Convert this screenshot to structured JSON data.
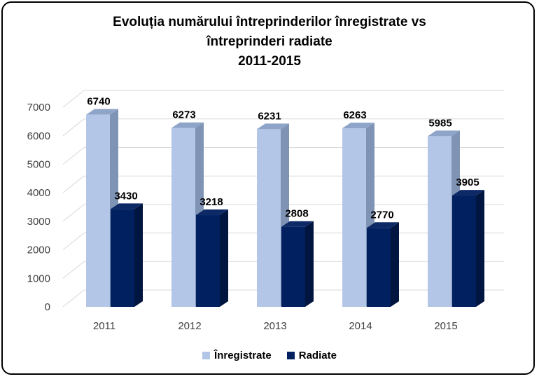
{
  "chart_data": {
    "type": "bar",
    "title": [
      "Evoluția numărului întreprinderilor înregistrate vs",
      "întreprinderi radiate",
      "2011-2015"
    ],
    "categories": [
      "2011",
      "2012",
      "2013",
      "2014",
      "2015"
    ],
    "series": [
      {
        "name": "Înregistrate",
        "values": [
          6740,
          6273,
          6231,
          6263,
          5985
        ],
        "color": "#b4c6e7"
      },
      {
        "name": "Radiate",
        "values": [
          3430,
          3218,
          2808,
          2770,
          3905
        ],
        "color": "#002060"
      }
    ],
    "ylim": [
      0,
      7000
    ],
    "yticks": [
      "0",
      "1000",
      "2000",
      "3000",
      "4000",
      "5000",
      "6000",
      "7000"
    ],
    "grid": true,
    "legend_position": "bottom"
  }
}
